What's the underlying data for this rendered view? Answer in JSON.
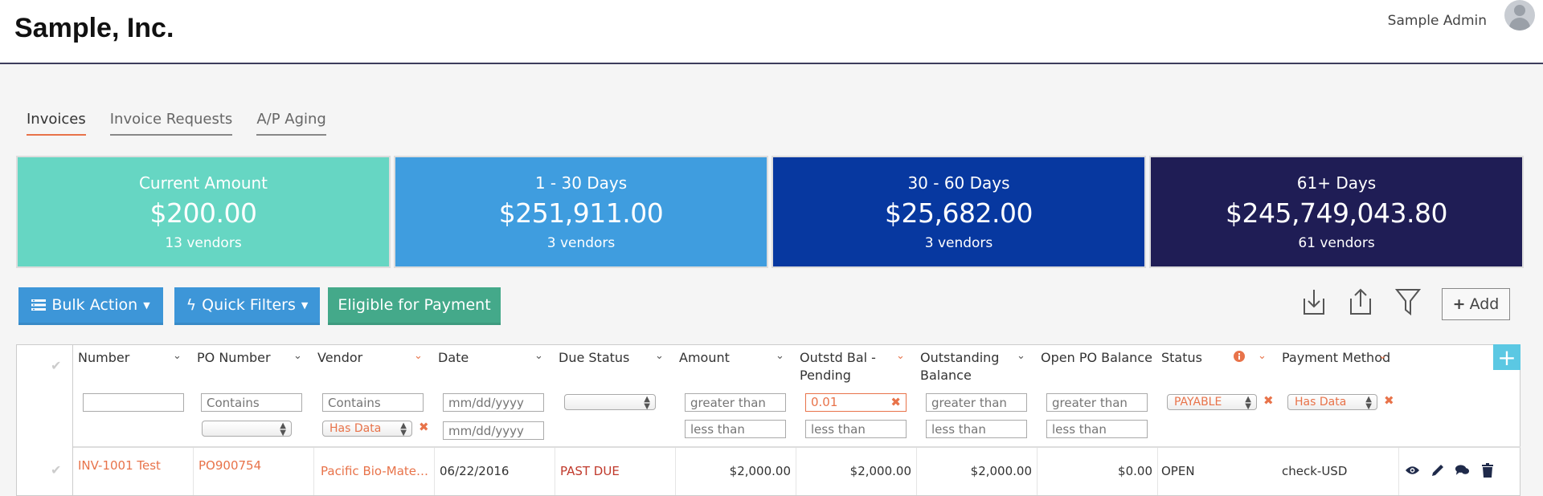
{
  "header": {
    "brand": "Sample, Inc.",
    "user_name": "Sample Admin",
    "avatar_icon": "user-avatar-icon"
  },
  "tabs": [
    {
      "label": "Invoices",
      "active": true
    },
    {
      "label": "Invoice Requests",
      "active": false
    },
    {
      "label": "A/P Aging",
      "active": false
    }
  ],
  "summary_cards": [
    {
      "label": "Current Amount",
      "amount": "$200.00",
      "vendors": "13 vendors",
      "color": "#66d6c3"
    },
    {
      "label": "1 - 30 Days",
      "amount": "$251,911.00",
      "vendors": "3 vendors",
      "color": "#3f9ddf"
    },
    {
      "label": "30 - 60 Days",
      "amount": "$25,682.00",
      "vendors": "3 vendors",
      "color": "#0738a0"
    },
    {
      "label": "61+ Days",
      "amount": "$245,749,043.80",
      "vendors": "61 vendors",
      "color": "#1f1d55"
    }
  ],
  "toolbar": {
    "bulk_action": "Bulk Action",
    "quick_filters": "Quick Filters",
    "eligible": "Eligible for Payment",
    "add": "Add"
  },
  "columns": [
    "Number",
    "PO Number",
    "Vendor",
    "Date",
    "Due Status",
    "Amount",
    "Outstd Bal -\nPending",
    "Outstanding\nBalance",
    "Open PO Balance",
    "Status",
    "Payment Method"
  ],
  "filters": {
    "number": "",
    "po_contains": "Contains",
    "vendor_contains": "Contains",
    "vendor_select": "Has Data",
    "date_from": "mm/dd/yyyy",
    "date_to": "mm/dd/yyyy",
    "greater_than": "greater than",
    "less_than": "less than",
    "outstd_pending_min": "0.01",
    "status_select": "PAYABLE",
    "payment_select": "Has Data"
  },
  "rows": [
    {
      "number": "INV-1001 Test",
      "po_number": "PO900754",
      "vendor": "Pacific Bio-Mate…",
      "date": "06/22/2016",
      "due_status": "PAST DUE",
      "amount": "$2,000.00",
      "outstd_pending": "$2,000.00",
      "outstanding": "$2,000.00",
      "open_po": "$0.00",
      "status": "OPEN",
      "payment_method": "check-USD"
    }
  ],
  "colors": {
    "accent": "#e8734a",
    "header_rule": "#3d3d5c",
    "button_blue": "#3d96d8",
    "button_green": "#44a98a"
  }
}
